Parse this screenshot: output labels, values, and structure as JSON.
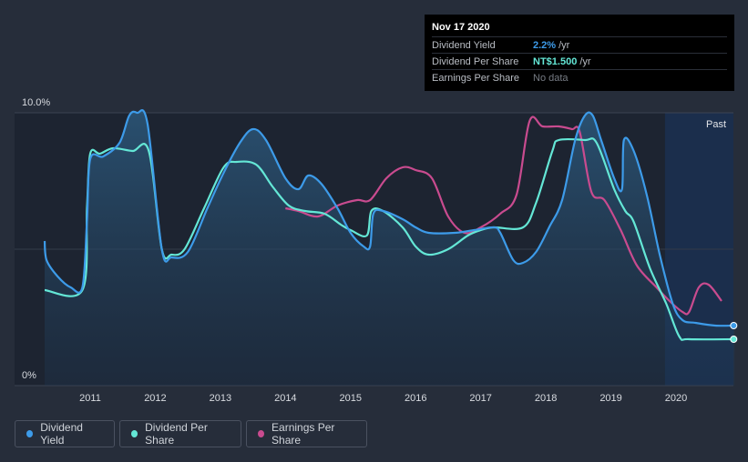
{
  "tooltip": {
    "date": "Nov 17 2020",
    "rows": [
      {
        "label": "Dividend Yield",
        "value": "2.2%",
        "unit": "/yr",
        "color": "#3d9be9"
      },
      {
        "label": "Dividend Per Share",
        "value": "NT$1.500",
        "unit": "/yr",
        "color": "#64e7d6"
      },
      {
        "label": "Earnings Per Share",
        "value": "No data",
        "unit": "",
        "color": "#777c84"
      }
    ]
  },
  "legend": [
    {
      "label": "Dividend Yield",
      "color": "#3d9be9"
    },
    {
      "label": "Dividend Per Share",
      "color": "#64e7d6"
    },
    {
      "label": "Earnings Per Share",
      "color": "#c94b8f"
    }
  ],
  "chart_data": {
    "type": "line",
    "title": "",
    "xlabel": "",
    "ylabel": "",
    "x_ticks": [
      "2011",
      "2012",
      "2013",
      "2014",
      "2015",
      "2016",
      "2017",
      "2018",
      "2019",
      "2020"
    ],
    "y_ticks": [
      "0%",
      "10.0%"
    ],
    "xlim": [
      2010.3,
      2020.9
    ],
    "ylim": [
      0,
      10
    ],
    "past_label": "Past",
    "past_start": 2019.83,
    "series": [
      {
        "name": "Dividend Yield",
        "color": "#3d9be9",
        "points": [
          [
            2010.3,
            5.3
          ],
          [
            2010.33,
            4.6
          ],
          [
            2010.5,
            4.0
          ],
          [
            2010.7,
            3.6
          ],
          [
            2010.88,
            3.6
          ],
          [
            2010.95,
            6.0
          ],
          [
            2011.0,
            8.3
          ],
          [
            2011.2,
            8.4
          ],
          [
            2011.45,
            8.9
          ],
          [
            2011.6,
            9.9
          ],
          [
            2011.72,
            10.0
          ],
          [
            2011.88,
            9.6
          ],
          [
            2012.1,
            5.0
          ],
          [
            2012.25,
            4.7
          ],
          [
            2012.5,
            4.9
          ],
          [
            2012.8,
            6.5
          ],
          [
            2013.05,
            7.8
          ],
          [
            2013.3,
            8.9
          ],
          [
            2013.5,
            9.4
          ],
          [
            2013.7,
            9.0
          ],
          [
            2014.0,
            7.6
          ],
          [
            2014.2,
            7.2
          ],
          [
            2014.35,
            7.7
          ],
          [
            2014.55,
            7.4
          ],
          [
            2014.8,
            6.5
          ],
          [
            2015.0,
            5.6
          ],
          [
            2015.2,
            5.1
          ],
          [
            2015.3,
            5.1
          ],
          [
            2015.35,
            6.3
          ],
          [
            2015.5,
            6.4
          ],
          [
            2015.8,
            6.1
          ],
          [
            2016.0,
            5.8
          ],
          [
            2016.2,
            5.6
          ],
          [
            2016.6,
            5.6
          ],
          [
            2016.9,
            5.7
          ],
          [
            2017.2,
            5.8
          ],
          [
            2017.3,
            5.6
          ],
          [
            2017.5,
            4.6
          ],
          [
            2017.65,
            4.5
          ],
          [
            2017.85,
            4.9
          ],
          [
            2018.05,
            5.8
          ],
          [
            2018.25,
            6.8
          ],
          [
            2018.45,
            9.0
          ],
          [
            2018.6,
            9.9
          ],
          [
            2018.72,
            9.9
          ],
          [
            2018.85,
            9.0
          ],
          [
            2019.05,
            7.6
          ],
          [
            2019.17,
            7.2
          ],
          [
            2019.2,
            9.0
          ],
          [
            2019.35,
            8.6
          ],
          [
            2019.55,
            7.0
          ],
          [
            2019.75,
            4.8
          ],
          [
            2019.95,
            3.0
          ],
          [
            2020.1,
            2.4
          ],
          [
            2020.3,
            2.3
          ],
          [
            2020.6,
            2.2
          ],
          [
            2020.9,
            2.2
          ]
        ]
      },
      {
        "name": "Dividend Per Share",
        "color": "#64e7d6",
        "points": [
          [
            2010.3,
            3.5
          ],
          [
            2010.88,
            3.5
          ],
          [
            2010.95,
            6.5
          ],
          [
            2011.0,
            8.5
          ],
          [
            2011.15,
            8.5
          ],
          [
            2011.35,
            8.7
          ],
          [
            2011.65,
            8.6
          ],
          [
            2011.9,
            8.6
          ],
          [
            2012.1,
            5.0
          ],
          [
            2012.25,
            4.8
          ],
          [
            2012.45,
            5.0
          ],
          [
            2012.75,
            6.5
          ],
          [
            2013.05,
            8.0
          ],
          [
            2013.25,
            8.2
          ],
          [
            2013.55,
            8.1
          ],
          [
            2013.8,
            7.3
          ],
          [
            2014.05,
            6.6
          ],
          [
            2014.3,
            6.4
          ],
          [
            2014.6,
            6.3
          ],
          [
            2014.85,
            5.9
          ],
          [
            2015.0,
            5.7
          ],
          [
            2015.25,
            5.5
          ],
          [
            2015.32,
            6.4
          ],
          [
            2015.5,
            6.4
          ],
          [
            2015.8,
            5.8
          ],
          [
            2016.0,
            5.1
          ],
          [
            2016.2,
            4.8
          ],
          [
            2016.5,
            5.0
          ],
          [
            2016.8,
            5.5
          ],
          [
            2017.0,
            5.7
          ],
          [
            2017.2,
            5.8
          ],
          [
            2017.65,
            5.8
          ],
          [
            2017.85,
            6.7
          ],
          [
            2018.1,
            8.6
          ],
          [
            2018.2,
            9.0
          ],
          [
            2018.6,
            9.0
          ],
          [
            2018.78,
            8.9
          ],
          [
            2019.05,
            7.2
          ],
          [
            2019.22,
            6.4
          ],
          [
            2019.35,
            6.0
          ],
          [
            2019.6,
            4.3
          ],
          [
            2019.85,
            3.0
          ],
          [
            2020.05,
            1.8
          ],
          [
            2020.2,
            1.7
          ],
          [
            2020.9,
            1.7
          ]
        ]
      },
      {
        "name": "Earnings Per Share",
        "color": "#c94b8f",
        "points": [
          [
            2014.0,
            6.5
          ],
          [
            2014.2,
            6.4
          ],
          [
            2014.5,
            6.2
          ],
          [
            2014.8,
            6.6
          ],
          [
            2015.1,
            6.8
          ],
          [
            2015.3,
            6.8
          ],
          [
            2015.55,
            7.6
          ],
          [
            2015.8,
            8.0
          ],
          [
            2016.0,
            7.9
          ],
          [
            2016.25,
            7.6
          ],
          [
            2016.5,
            6.2
          ],
          [
            2016.75,
            5.6
          ],
          [
            2017.0,
            5.8
          ],
          [
            2017.3,
            6.3
          ],
          [
            2017.55,
            7.0
          ],
          [
            2017.75,
            9.7
          ],
          [
            2017.95,
            9.5
          ],
          [
            2018.2,
            9.5
          ],
          [
            2018.4,
            9.4
          ],
          [
            2018.52,
            9.3
          ],
          [
            2018.7,
            7.1
          ],
          [
            2018.9,
            6.8
          ],
          [
            2019.15,
            5.7
          ],
          [
            2019.4,
            4.4
          ],
          [
            2019.7,
            3.6
          ],
          [
            2019.9,
            3.1
          ],
          [
            2020.1,
            2.7
          ],
          [
            2020.2,
            2.7
          ],
          [
            2020.35,
            3.6
          ],
          [
            2020.5,
            3.7
          ],
          [
            2020.7,
            3.1
          ]
        ]
      }
    ]
  }
}
